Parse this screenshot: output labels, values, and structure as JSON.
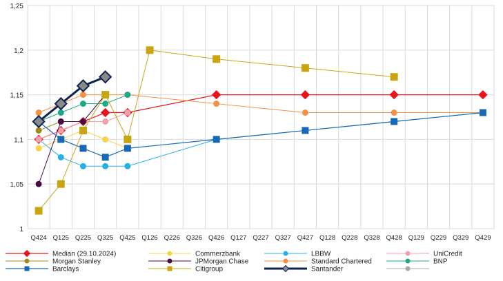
{
  "chart_data": {
    "type": "line",
    "title": "",
    "xlabel": "",
    "ylabel": "",
    "categories": [
      "Q424",
      "Q125",
      "Q225",
      "Q325",
      "Q425",
      "Q126",
      "Q226",
      "Q326",
      "Q426",
      "Q127",
      "Q227",
      "Q327",
      "Q427",
      "Q128",
      "Q228",
      "Q328",
      "Q428",
      "Q129",
      "Q229",
      "Q329",
      "Q429"
    ],
    "ylim": [
      1,
      1.25
    ],
    "yticks": [
      "1",
      "1,05",
      "1,1",
      "1,15",
      "1,2",
      "1,25"
    ],
    "ytick_values": [
      1,
      1.05,
      1.1,
      1.15,
      1.2,
      1.25
    ],
    "grid": "vertical and horizontal",
    "legend": "bottom",
    "series": [
      {
        "name": "Median (29.10.2024)",
        "color": "#e8141e",
        "marker": "diamond",
        "width": 1.2,
        "points": [
          [
            "Q424",
            1.1
          ],
          [
            "Q125",
            1.11
          ],
          [
            "Q225",
            1.12
          ],
          [
            "Q325",
            1.13
          ],
          [
            "Q425",
            1.13
          ],
          [
            "Q426",
            1.15
          ],
          [
            "Q427",
            1.15
          ],
          [
            "Q428",
            1.15
          ],
          [
            "Q429",
            1.15
          ]
        ]
      },
      {
        "name": "Commerzbank",
        "color": "#f5d548",
        "marker": "circle",
        "width": 1,
        "points": [
          [
            "Q424",
            1.09
          ],
          [
            "Q125",
            1.1
          ],
          [
            "Q225",
            1.11
          ],
          [
            "Q325",
            1.1
          ],
          [
            "Q425",
            1.09
          ]
        ]
      },
      {
        "name": "LBBW",
        "color": "#27b0e3",
        "marker": "circle",
        "width": 1,
        "points": [
          [
            "Q424",
            1.1
          ],
          [
            "Q125",
            1.08
          ],
          [
            "Q225",
            1.07
          ],
          [
            "Q325",
            1.07
          ],
          [
            "Q425",
            1.07
          ],
          [
            "Q426",
            1.1
          ],
          [
            "Q427",
            1.11
          ],
          [
            "Q428",
            1.12
          ],
          [
            "Q429",
            1.13
          ]
        ]
      },
      {
        "name": "UniCredit",
        "color": "#f0a0a8",
        "marker": "circle",
        "width": 1,
        "points": [
          [
            "Q424",
            1.1
          ],
          [
            "Q125",
            1.11
          ],
          [
            "Q225",
            1.12
          ],
          [
            "Q325",
            1.12
          ],
          [
            "Q425",
            1.13
          ]
        ]
      },
      {
        "name": "Morgan Stanley",
        "color": "#a08a16",
        "marker": "circle",
        "width": 1,
        "points": [
          [
            "Q424",
            1.11
          ],
          [
            "Q125",
            1.12
          ],
          [
            "Q225",
            1.12
          ],
          [
            "Q325",
            1.15
          ]
        ]
      },
      {
        "name": "JPMorgan Chase",
        "color": "#4a0a44",
        "marker": "circle",
        "width": 1,
        "points": [
          [
            "Q424",
            1.05
          ],
          [
            "Q125",
            1.12
          ],
          [
            "Q225",
            1.12
          ],
          [
            "Q325",
            1.15
          ]
        ]
      },
      {
        "name": "Standard Chartered",
        "color": "#f29144",
        "marker": "circle",
        "width": 1,
        "points": [
          [
            "Q424",
            1.13
          ],
          [
            "Q125",
            1.14
          ],
          [
            "Q225",
            1.15
          ],
          [
            "Q325",
            1.15
          ],
          [
            "Q425",
            1.15
          ],
          [
            "Q426",
            1.14
          ],
          [
            "Q427",
            1.13
          ],
          [
            "Q428",
            1.13
          ],
          [
            "Q429",
            1.13
          ]
        ]
      },
      {
        "name": "BNP",
        "color": "#1fa883",
        "marker": "circle",
        "width": 1,
        "points": [
          [
            "Q424",
            1.12
          ],
          [
            "Q125",
            1.13
          ],
          [
            "Q225",
            1.14
          ],
          [
            "Q325",
            1.14
          ],
          [
            "Q425",
            1.15
          ]
        ]
      },
      {
        "name": "Barclays",
        "color": "#1769b5",
        "marker": "square",
        "width": 1.2,
        "points": [
          [
            "Q424",
            1.12
          ],
          [
            "Q125",
            1.1
          ],
          [
            "Q225",
            1.09
          ],
          [
            "Q325",
            1.08
          ],
          [
            "Q425",
            1.09
          ],
          [
            "Q426",
            1.1
          ],
          [
            "Q427",
            1.11
          ],
          [
            "Q428",
            1.12
          ],
          [
            "Q429",
            1.13
          ]
        ]
      },
      {
        "name": "Citigroup",
        "color": "#c9a514",
        "marker": "square",
        "width": 1,
        "points": [
          [
            "Q424",
            1.02
          ],
          [
            "Q125",
            1.05
          ],
          [
            "Q225",
            1.11
          ],
          [
            "Q325",
            1.15
          ],
          [
            "Q425",
            1.1
          ],
          [
            "Q126",
            1.2
          ],
          [
            "Q426",
            1.19
          ],
          [
            "Q427",
            1.18
          ],
          [
            "Q428",
            1.17
          ]
        ]
      },
      {
        "name": "Santander",
        "color": "#0d2350",
        "marker": "diamond",
        "width": 3,
        "points": [
          [
            "Q424",
            1.12
          ],
          [
            "Q125",
            1.14
          ],
          [
            "Q225",
            1.16
          ],
          [
            "Q325",
            1.17
          ]
        ]
      },
      {
        "name": "",
        "color": "#a8a8a8",
        "marker": "circle",
        "width": 1,
        "points": []
      }
    ]
  }
}
